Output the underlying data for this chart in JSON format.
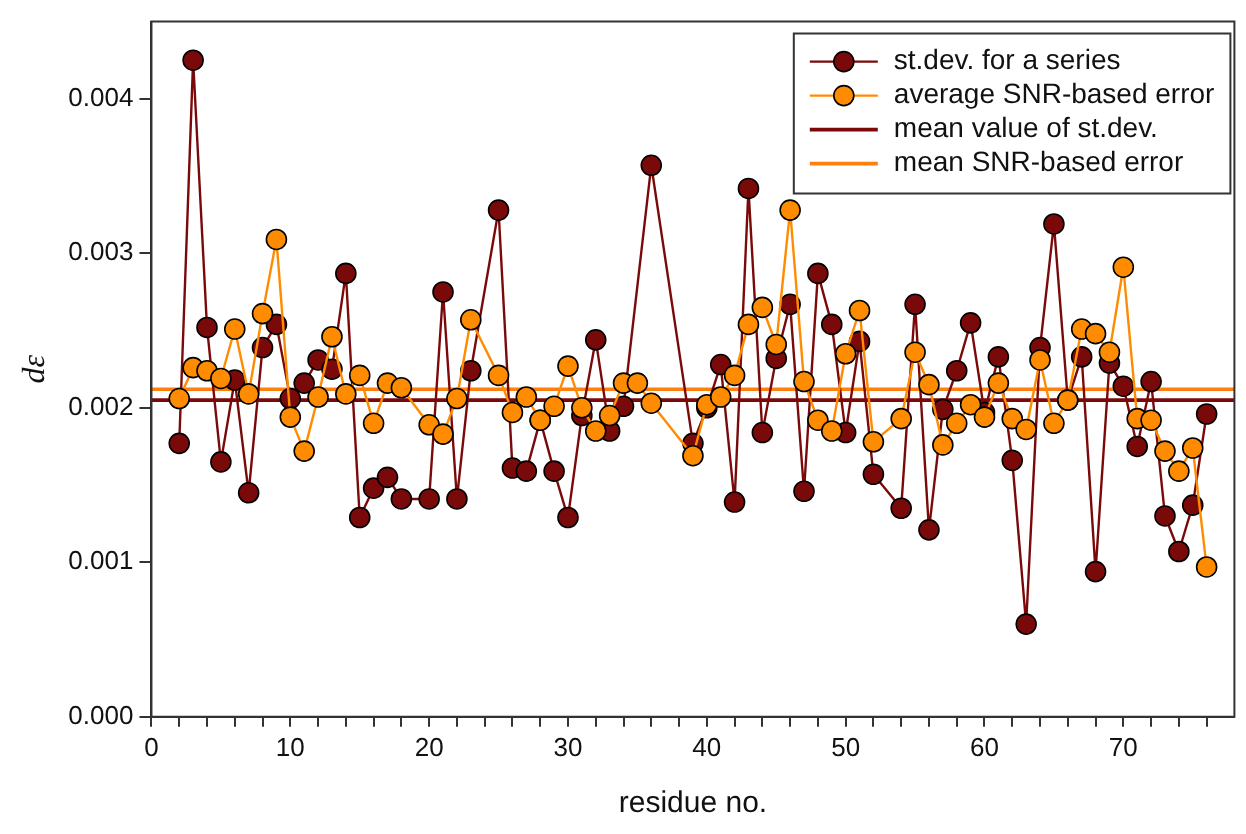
{
  "chart_data": {
    "type": "line",
    "xlabel": "residue no.",
    "ylabel": "dε",
    "xlim": [
      0,
      78
    ],
    "ylim": [
      0,
      0.0045
    ],
    "xticks": [
      0,
      {
        "value": 2,
        "label": null
      },
      {
        "value": 4,
        "label": null
      },
      {
        "value": 6,
        "label": null
      },
      {
        "value": 8,
        "label": null
      },
      10,
      {
        "value": 12,
        "label": null
      },
      {
        "value": 14,
        "label": null
      },
      {
        "value": 16,
        "label": null
      },
      {
        "value": 18,
        "label": null
      },
      20,
      {
        "value": 22,
        "label": null
      },
      {
        "value": 24,
        "label": null
      },
      {
        "value": 26,
        "label": null
      },
      {
        "value": 28,
        "label": null
      },
      30,
      {
        "value": 32,
        "label": null
      },
      {
        "value": 34,
        "label": null
      },
      {
        "value": 36,
        "label": null
      },
      {
        "value": 38,
        "label": null
      },
      40,
      {
        "value": 42,
        "label": null
      },
      {
        "value": 44,
        "label": null
      },
      {
        "value": 46,
        "label": null
      },
      {
        "value": 48,
        "label": null
      },
      50,
      {
        "value": 52,
        "label": null
      },
      {
        "value": 54,
        "label": null
      },
      {
        "value": 56,
        "label": null
      },
      {
        "value": 58,
        "label": null
      },
      60,
      {
        "value": 62,
        "label": null
      },
      {
        "value": 64,
        "label": null
      },
      {
        "value": 66,
        "label": null
      },
      {
        "value": 68,
        "label": null
      },
      70,
      {
        "value": 72,
        "label": null
      },
      {
        "value": 74,
        "label": null
      },
      {
        "value": 76,
        "label": null
      }
    ],
    "yticks": [
      {
        "value": 0,
        "label": "0.000"
      },
      {
        "value": 0.001,
        "label": "0.001"
      },
      {
        "value": 0.002,
        "label": "0.002"
      },
      {
        "value": 0.003,
        "label": "0.003"
      },
      {
        "value": 0.004,
        "label": "0.004"
      }
    ],
    "grid": false,
    "legend": "top right",
    "marker": "circle",
    "line_style": "solid",
    "series": [
      {
        "name": "st.dev. for a series",
        "color": "#7a0a0a",
        "x": [
          2,
          3,
          4,
          5,
          6,
          7,
          8,
          9,
          10,
          11,
          12,
          13,
          14,
          15,
          16,
          17,
          18,
          20,
          21,
          22,
          23,
          25,
          26,
          27,
          28,
          29,
          30,
          31,
          32,
          33,
          34,
          36,
          39,
          40,
          41,
          42,
          43,
          44,
          45,
          46,
          47,
          48,
          49,
          50,
          51,
          52,
          54,
          55,
          56,
          57,
          58,
          59,
          60,
          61,
          62,
          63,
          64,
          65,
          66,
          67,
          68,
          69,
          70,
          71,
          72,
          73,
          74,
          75,
          76
        ],
        "values": [
          0.00177,
          0.00425,
          0.00252,
          0.00165,
          0.00218,
          0.00145,
          0.00239,
          0.00254,
          0.00206,
          0.00216,
          0.00231,
          0.00225,
          0.00287,
          0.00129,
          0.00148,
          0.00155,
          0.00141,
          0.00141,
          0.00275,
          0.00141,
          0.00224,
          0.00328,
          0.00161,
          0.00159,
          0.00192,
          0.00159,
          0.00129,
          0.00195,
          0.00244,
          0.00185,
          0.00201,
          0.00357,
          0.00177,
          0.002,
          0.00228,
          0.00139,
          0.00342,
          0.00184,
          0.00232,
          0.00267,
          0.00146,
          0.00287,
          0.00254,
          0.00184,
          0.00243,
          0.00157,
          0.00135,
          0.00267,
          0.00121,
          0.00199,
          0.00224,
          0.00255,
          0.00197,
          0.00233,
          0.00166,
          0.0006,
          0.00239,
          0.00319,
          0.00205,
          0.00233,
          0.00094,
          0.00229,
          0.00214,
          0.00175,
          0.00217,
          0.0013,
          0.00107,
          0.00137,
          0.00196
        ]
      },
      {
        "name": "average SNR-based error",
        "color": "#ff8c00",
        "x": [
          2,
          3,
          4,
          5,
          6,
          7,
          8,
          9,
          10,
          11,
          12,
          13,
          14,
          15,
          16,
          17,
          18,
          20,
          21,
          22,
          23,
          25,
          26,
          27,
          28,
          29,
          30,
          31,
          32,
          33,
          34,
          35,
          36,
          39,
          40,
          41,
          42,
          43,
          44,
          45,
          46,
          47,
          48,
          49,
          50,
          51,
          52,
          54,
          55,
          56,
          57,
          58,
          59,
          60,
          61,
          62,
          63,
          64,
          65,
          66,
          67,
          68,
          69,
          70,
          71,
          72,
          73,
          74,
          75,
          76
        ],
        "values": [
          0.00206,
          0.00226,
          0.00224,
          0.00219,
          0.00251,
          0.00209,
          0.00261,
          0.00309,
          0.00194,
          0.00172,
          0.00207,
          0.00246,
          0.00209,
          0.00221,
          0.0019,
          0.00216,
          0.00213,
          0.00189,
          0.00183,
          0.00206,
          0.00257,
          0.00221,
          0.00197,
          0.00207,
          0.00192,
          0.00201,
          0.00227,
          0.002,
          0.00185,
          0.00195,
          0.00216,
          0.00216,
          0.00203,
          0.00169,
          0.00202,
          0.00207,
          0.00221,
          0.00254,
          0.00265,
          0.00241,
          0.00328,
          0.00217,
          0.00192,
          0.00185,
          0.00235,
          0.00263,
          0.00178,
          0.00193,
          0.00236,
          0.00215,
          0.00176,
          0.0019,
          0.00202,
          0.00194,
          0.00216,
          0.00193,
          0.00186,
          0.00231,
          0.0019,
          0.00205,
          0.00251,
          0.00248,
          0.00236,
          0.00291,
          0.00193,
          0.00192,
          0.00172,
          0.00159,
          0.00174,
          0.00097
        ]
      }
    ],
    "ref_lines": [
      {
        "axis": "y",
        "value": 0.00205,
        "label": "mean value of st.dev.",
        "color": "#7a0a0a",
        "line_style": "solid"
      },
      {
        "axis": "y",
        "value": 0.00212,
        "label": "mean SNR-based error",
        "color": "#ff7f0e",
        "line_style": "solid"
      }
    ]
  }
}
